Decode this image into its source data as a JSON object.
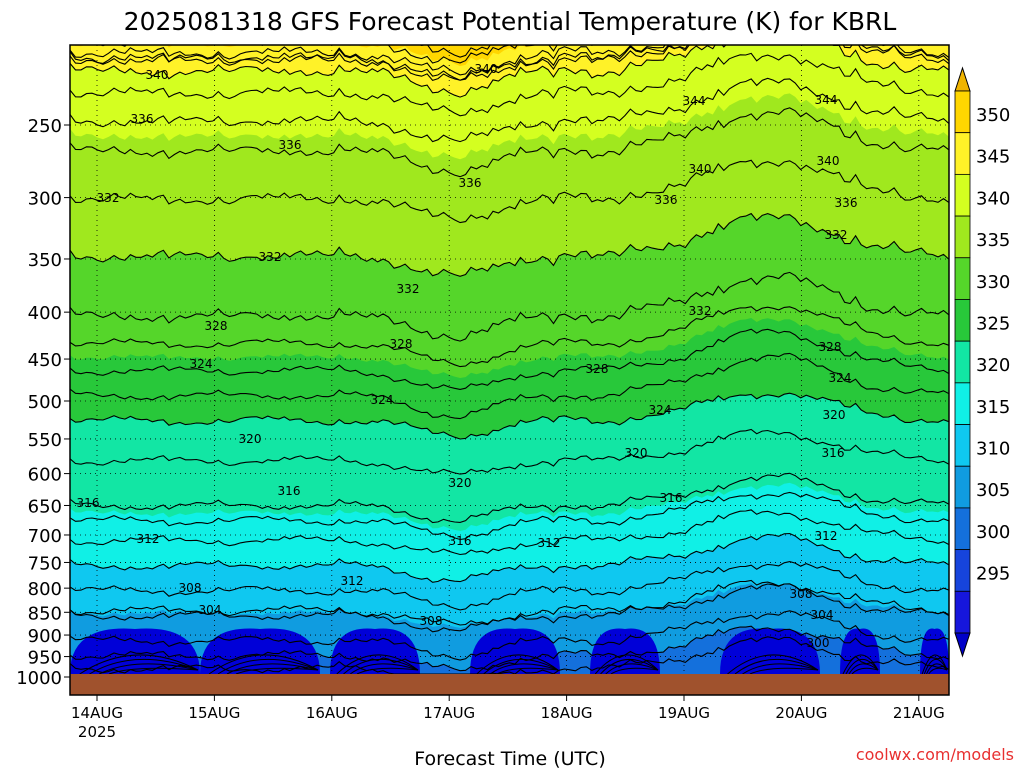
{
  "chart_data": {
    "type": "heatmap",
    "title": "2025081318 GFS Forecast Potential Temperature (K) for KBRL",
    "xlabel": "Forecast Time (UTC)",
    "ylabel": "",
    "credit": "coolwx.com/models",
    "x_ticks": [
      {
        "label": "14AUG",
        "sub": "2025"
      },
      {
        "label": "15AUG",
        "sub": ""
      },
      {
        "label": "16AUG",
        "sub": ""
      },
      {
        "label": "17AUG",
        "sub": ""
      },
      {
        "label": "18AUG",
        "sub": ""
      },
      {
        "label": "19AUG",
        "sub": ""
      },
      {
        "label": "20AUG",
        "sub": ""
      },
      {
        "label": "21AUG",
        "sub": ""
      }
    ],
    "xlim": [
      "2025-08-13T18:00Z",
      "2025-08-21T18:00Z"
    ],
    "y_ticks": [
      "250",
      "300",
      "350",
      "400",
      "450",
      "500",
      "550",
      "600",
      "650",
      "700",
      "750",
      "800",
      "850",
      "900",
      "950",
      "1000"
    ],
    "ylim": [
      1000,
      200
    ],
    "y_scale": "log",
    "colorbar": {
      "labels": [
        "350",
        "345",
        "340",
        "335",
        "330",
        "325",
        "320",
        "315",
        "310",
        "305",
        "300",
        "295"
      ],
      "colors": [
        "#ffd600",
        "#fff228",
        "#d4ff20",
        "#a0e81e",
        "#55d62a",
        "#28c83a",
        "#12e6a4",
        "#10f0e6",
        "#0fc8f0",
        "#109ce0",
        "#1470dc",
        "#1644dc",
        "#1616dc"
      ],
      "arrow_top": "#f0b400",
      "arrow_bottom": "#0000c8"
    },
    "contour_labels": [
      "340",
      "340",
      "344",
      "344",
      "336",
      "336",
      "336",
      "336",
      "340",
      "340",
      "332",
      "332",
      "332",
      "332",
      "332",
      "336",
      "328",
      "328",
      "328",
      "328",
      "324",
      "324",
      "324",
      "324",
      "320",
      "320",
      "320",
      "320",
      "316",
      "316",
      "316",
      "316",
      "316",
      "312",
      "312",
      "312",
      "312",
      "308",
      "308",
      "308",
      "304",
      "304",
      "300"
    ],
    "terrain_color": "#a0522d"
  }
}
